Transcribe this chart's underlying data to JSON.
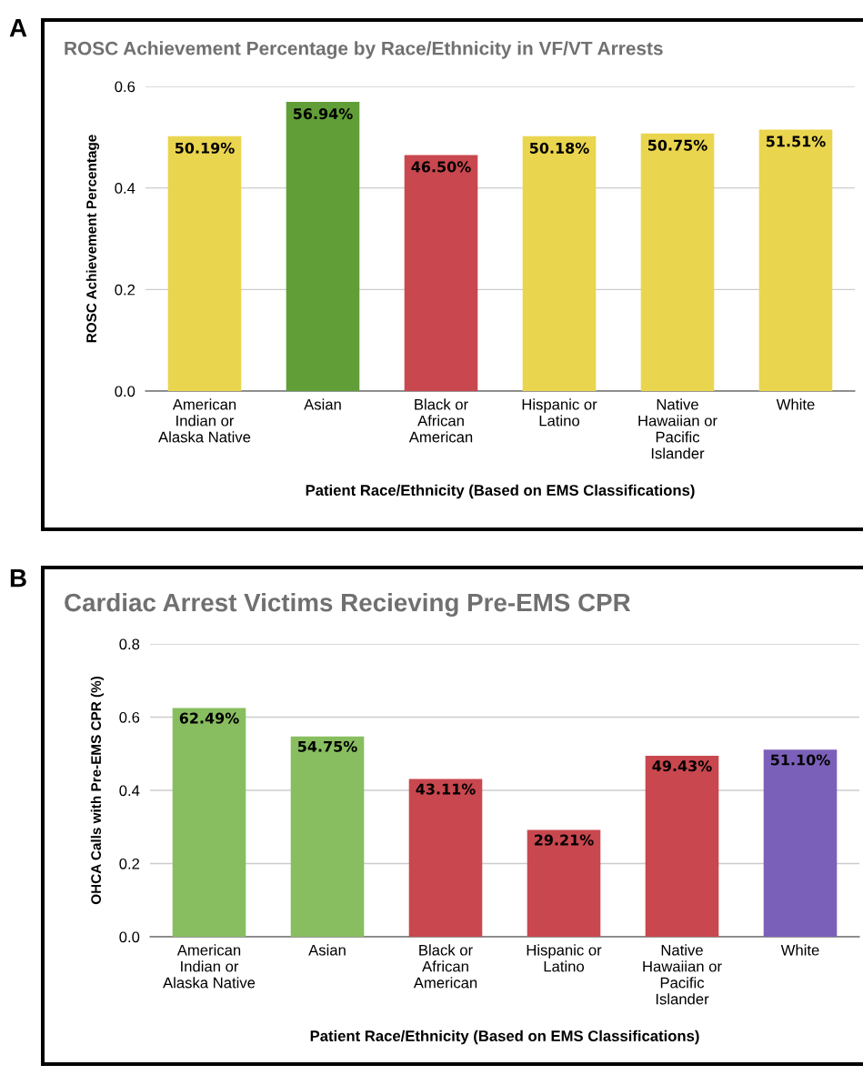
{
  "chart_data": [
    {
      "type": "bar",
      "title": "ROSC Achievement Percentage by Race/Ethnicity in VF/VT Arrests",
      "xlabel": "Patient Race/Ethnicity (Based on EMS Classifications)",
      "ylabel": "ROSC Achievement Percentage",
      "categories": [
        "American\nIndian or\nAlaska Native",
        "Asian",
        "Black or\nAfrican\nAmerican",
        "Hispanic or\nLatino",
        "Native\nHawaiian or\nPacific\nIslander",
        "White"
      ],
      "values": [
        0.5019,
        0.5694,
        0.465,
        0.5018,
        0.5075,
        0.5151
      ],
      "value_labels": [
        "50.19%",
        "56.94%",
        "46.50%",
        "50.18%",
        "50.75%",
        "51.51%"
      ],
      "colors": [
        "#ead54e",
        "#619e38",
        "#c9474e",
        "#ead54e",
        "#ead54e",
        "#ead54e"
      ],
      "ylim": [
        0,
        0.6
      ],
      "yticks": [
        {
          "value": 0,
          "label": "0.0"
        },
        0.2,
        0.4,
        0.6
      ],
      "grid": "y",
      "annotations": [
        "A"
      ]
    },
    {
      "type": "bar",
      "title": "Cardiac Arrest Victims Recieving Pre-EMS CPR",
      "xlabel": "Patient Race/Ethnicity (Based on EMS Classifications)",
      "ylabel": "OHCA Calls with Pre-EMS CPR (%)",
      "categories": [
        "American\nIndian or\nAlaska Native",
        "Asian",
        "Black or\nAfrican\nAmerican",
        "Hispanic or\nLatino",
        "Native\nHawaiian or\nPacific\nIslander",
        "White"
      ],
      "values": [
        0.6249,
        0.5475,
        0.4311,
        0.2921,
        0.4943,
        0.511
      ],
      "value_labels": [
        "62.49%",
        "54.75%",
        "43.11%",
        "29.21%",
        "49.43%",
        "51.10%"
      ],
      "colors": [
        "#88be5f",
        "#88be5f",
        "#c9474e",
        "#c9474e",
        "#c9474e",
        "#7b60b9"
      ],
      "ylim": [
        0,
        0.8
      ],
      "yticks": [
        {
          "value": 0,
          "label": "0.0"
        },
        0.2,
        0.4,
        0.6,
        0.8
      ],
      "grid": "y",
      "annotations": [
        "B"
      ]
    }
  ]
}
